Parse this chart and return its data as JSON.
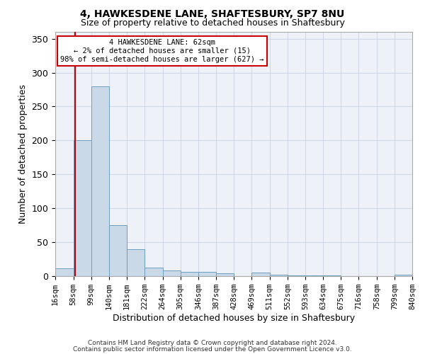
{
  "title_line1": "4, HAWKESDENE LANE, SHAFTESBURY, SP7 8NU",
  "title_line2": "Size of property relative to detached houses in Shaftesbury",
  "xlabel": "Distribution of detached houses by size in Shaftesbury",
  "ylabel": "Number of detached properties",
  "footnote_line1": "Contains HM Land Registry data © Crown copyright and database right 2024.",
  "footnote_line2": "Contains public sector information licensed under the Open Government Licence v3.0.",
  "bar_edges": [
    16,
    58,
    99,
    140,
    181,
    222,
    264,
    305,
    346,
    387,
    428,
    469,
    511,
    552,
    593,
    634,
    675,
    716,
    758,
    799,
    840
  ],
  "bar_heights": [
    12,
    200,
    280,
    75,
    40,
    13,
    8,
    6,
    6,
    4,
    0,
    5,
    2,
    1,
    1,
    1,
    0,
    0,
    0,
    2
  ],
  "bar_color": "#c9d9e8",
  "bar_edge_color": "#6a9fc0",
  "grid_color": "#d0d8e8",
  "background_color": "#eef2f8",
  "red_line_x": 62,
  "annotation_text": "4 HAWKESDENE LANE: 62sqm\n← 2% of detached houses are smaller (15)\n98% of semi-detached houses are larger (627) →",
  "annotation_box_color": "#ffffff",
  "annotation_border_color": "#cc0000",
  "ylim": [
    0,
    360
  ],
  "yticks": [
    0,
    50,
    100,
    150,
    200,
    250,
    300,
    350
  ],
  "tick_labels": [
    "16sqm",
    "58sqm",
    "99sqm",
    "140sqm",
    "181sqm",
    "222sqm",
    "264sqm",
    "305sqm",
    "346sqm",
    "387sqm",
    "428sqm",
    "469sqm",
    "511sqm",
    "552sqm",
    "593sqm",
    "634sqm",
    "675sqm",
    "716sqm",
    "758sqm",
    "799sqm",
    "840sqm"
  ]
}
